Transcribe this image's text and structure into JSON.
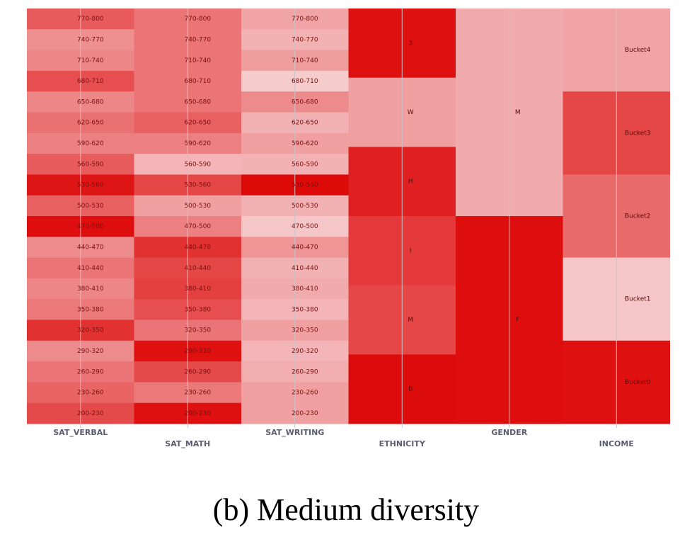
{
  "caption": "(b) Medium diversity",
  "chart_data": {
    "type": "heatmap",
    "colors": {
      "low": "#f8e0e2",
      "high": "#dd0a0a"
    },
    "columns": [
      {
        "name": "SAT_VERBAL",
        "kind": "numeric",
        "bins": [
          "770-800",
          "740-770",
          "710-740",
          "680-710",
          "650-680",
          "620-650",
          "590-620",
          "560-590",
          "530-560",
          "500-530",
          "470-500",
          "440-470",
          "410-440",
          "380-410",
          "350-380",
          "320-350",
          "290-320",
          "260-290",
          "230-260",
          "200-230"
        ],
        "intensity": [
          0.62,
          0.38,
          0.42,
          0.68,
          0.42,
          0.52,
          0.45,
          0.62,
          0.95,
          0.6,
          0.98,
          0.4,
          0.5,
          0.42,
          0.48,
          0.82,
          0.4,
          0.5,
          0.58,
          0.7
        ]
      },
      {
        "name": "SAT_MATH",
        "kind": "numeric",
        "bins": [
          "770-800",
          "740-770",
          "710-740",
          "680-710",
          "650-680",
          "620-650",
          "590-620",
          "560-590",
          "530-560",
          "500-530",
          "470-500",
          "440-470",
          "410-440",
          "380-410",
          "350-380",
          "320-350",
          "290-320",
          "260-290",
          "230-260",
          "200-230"
        ],
        "intensity": [
          0.5,
          0.5,
          0.5,
          0.5,
          0.5,
          0.6,
          0.45,
          0.2,
          0.72,
          0.3,
          0.45,
          0.82,
          0.72,
          0.75,
          0.68,
          0.5,
          0.97,
          0.7,
          0.48,
          0.97
        ]
      },
      {
        "name": "SAT_WRITING",
        "kind": "numeric",
        "bins": [
          "770-800",
          "740-770",
          "710-740",
          "680-710",
          "650-680",
          "620-650",
          "590-620",
          "560-590",
          "530-560",
          "500-530",
          "470-500",
          "440-470",
          "410-440",
          "380-410",
          "350-380",
          "320-350",
          "290-320",
          "260-290",
          "230-260",
          "200-230"
        ],
        "intensity": [
          0.28,
          0.22,
          0.32,
          0.1,
          0.4,
          0.22,
          0.3,
          0.22,
          1.0,
          0.22,
          0.12,
          0.35,
          0.22,
          0.25,
          0.2,
          0.3,
          0.2,
          0.24,
          0.3,
          0.3
        ]
      },
      {
        "name": "ETHNICITY",
        "kind": "categorical",
        "categories": [
          "3",
          "W",
          "H",
          "I",
          "M",
          "B"
        ],
        "intensity": [
          0.97,
          0.3,
          0.9,
          0.78,
          0.72,
          0.99
        ]
      },
      {
        "name": "GENDER",
        "kind": "categorical",
        "categories": [
          "M",
          "F"
        ],
        "intensity": [
          0.25,
          0.98
        ]
      },
      {
        "name": "INCOME",
        "kind": "categorical",
        "categories": [
          "Bucket4",
          "Bucket3",
          "Bucket2",
          "Bucket1",
          "Bucket0"
        ],
        "intensity": [
          0.28,
          0.72,
          0.55,
          0.12,
          0.97
        ]
      }
    ]
  }
}
